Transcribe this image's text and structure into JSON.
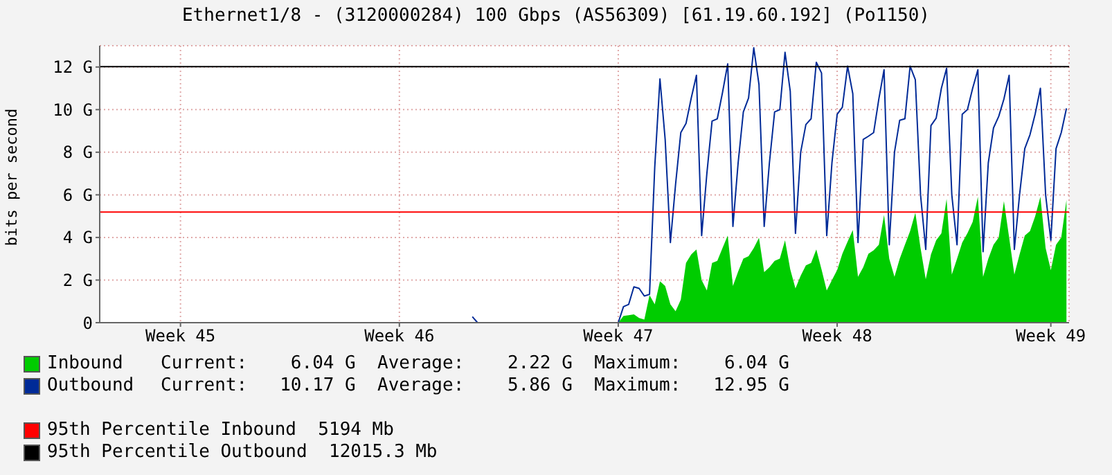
{
  "chart_data": {
    "type": "line",
    "title": "Ethernet1/8 - (3120000284) 100 Gbps (AS56309) [61.19.60.192] (Po1150)",
    "ylabel": "bits per second",
    "categories": [
      null,
      null,
      null,
      null,
      null,
      null,
      null,
      null,
      null,
      null,
      null,
      null,
      null,
      null,
      null,
      "Week 45",
      null,
      null,
      null,
      null,
      null,
      null,
      null,
      null,
      null,
      null,
      null,
      null,
      null,
      null,
      null,
      null,
      null,
      null,
      null,
      null,
      null,
      null,
      null,
      null,
      null,
      null,
      null,
      null,
      null,
      null,
      null,
      null,
      null,
      null,
      null,
      null,
      null,
      null,
      null,
      null,
      null,
      "Week 46",
      null,
      null,
      null,
      null,
      null,
      null,
      null,
      null,
      null,
      null,
      null,
      null,
      null,
      null,
      null,
      null,
      null,
      null,
      null,
      null,
      null,
      null,
      null,
      null,
      null,
      null,
      null,
      null,
      null,
      null,
      null,
      null,
      null,
      null,
      null,
      null,
      null,
      null,
      null,
      null,
      null,
      "Week 47",
      null,
      null,
      null,
      null,
      null,
      null,
      null,
      null,
      null,
      null,
      null,
      null,
      null,
      null,
      null,
      null,
      null,
      null,
      null,
      null,
      null,
      null,
      null,
      null,
      null,
      null,
      null,
      null,
      null,
      null,
      null,
      null,
      null,
      null,
      null,
      null,
      null,
      null,
      null,
      null,
      null,
      "Week 48",
      null,
      null,
      null,
      null,
      null,
      null,
      null,
      null,
      null,
      null,
      null,
      null,
      null,
      null,
      null,
      null,
      null,
      null,
      null,
      null,
      null,
      null,
      null,
      null,
      null,
      null,
      null,
      null,
      null,
      null,
      null,
      null,
      null,
      null,
      null,
      null,
      null,
      null,
      null,
      null,
      "Week 49",
      null,
      null,
      null
    ],
    "ylim": [
      0,
      13
    ],
    "yticks": [
      0,
      {
        "value": 2,
        "label": "2 G"
      },
      {
        "value": 4,
        "label": "4 G"
      },
      {
        "value": 6,
        "label": "6 G"
      },
      {
        "value": 8,
        "label": "8 G"
      },
      {
        "value": 10,
        "label": "10 G"
      },
      {
        "value": 12,
        "label": "12 G"
      }
    ],
    "grid": true,
    "legend": "bottom",
    "series": [
      {
        "name": "Inbound",
        "type": "area",
        "color": "#00cc00",
        "values": [
          null,
          null,
          null,
          null,
          null,
          null,
          null,
          null,
          null,
          null,
          null,
          null,
          null,
          null,
          null,
          null,
          null,
          null,
          null,
          null,
          null,
          null,
          null,
          null,
          null,
          null,
          null,
          null,
          null,
          null,
          null,
          null,
          null,
          null,
          null,
          null,
          null,
          null,
          null,
          null,
          null,
          null,
          null,
          null,
          null,
          null,
          null,
          null,
          null,
          null,
          null,
          null,
          null,
          null,
          null,
          null,
          null,
          null,
          null,
          null,
          null,
          null,
          null,
          null,
          null,
          null,
          null,
          null,
          null,
          null,
          null,
          null,
          null,
          null,
          null,
          null,
          null,
          null,
          null,
          null,
          null,
          null,
          null,
          null,
          null,
          null,
          null,
          null,
          null,
          null,
          null,
          null,
          null,
          null,
          null,
          null,
          null,
          null,
          null,
          0,
          0.32,
          0.35,
          0.39,
          0.22,
          0.15,
          1.29,
          0.86,
          1.94,
          1.72,
          0.86,
          0.54,
          1.08,
          2.8,
          3.2,
          3.44,
          2.0,
          1.51,
          2.8,
          2.9,
          3.5,
          4.09,
          1.72,
          2.4,
          3.01,
          3.12,
          3.5,
          3.98,
          2.37,
          2.6,
          2.9,
          3.01,
          3.87,
          2.5,
          1.61,
          2.2,
          2.69,
          2.8,
          3.44,
          2.5,
          1.51,
          2.0,
          2.47,
          3.23,
          3.8,
          4.35,
          2.15,
          2.6,
          3.23,
          3.4,
          3.66,
          5.05,
          3.0,
          2.15,
          3.0,
          3.66,
          4.3,
          5.16,
          3.5,
          2.04,
          3.2,
          3.87,
          4.19,
          5.81,
          2.26,
          3.0,
          3.76,
          4.2,
          4.73,
          5.91,
          2.15,
          3.0,
          3.66,
          4.0,
          5.7,
          4.0,
          2.26,
          3.2,
          4.09,
          4.3,
          5.0,
          5.91,
          3.5,
          2.47,
          3.66,
          4.0,
          5.76
        ]
      },
      {
        "name": "Outbound",
        "color": "#002a97",
        "values": [
          null,
          null,
          null,
          null,
          null,
          null,
          null,
          null,
          null,
          null,
          null,
          null,
          null,
          null,
          null,
          null,
          null,
          null,
          null,
          null,
          null,
          null,
          null,
          null,
          null,
          null,
          null,
          null,
          null,
          null,
          null,
          null,
          null,
          null,
          null,
          null,
          null,
          null,
          null,
          null,
          null,
          null,
          null,
          null,
          null,
          null,
          null,
          null,
          null,
          null,
          null,
          null,
          null,
          null,
          null,
          null,
          null,
          null,
          null,
          null,
          null,
          null,
          null,
          null,
          null,
          null,
          null,
          null,
          null,
          null,
          null,
          0.28,
          0,
          0,
          null,
          null,
          null,
          null,
          null,
          null,
          null,
          null,
          null,
          null,
          null,
          null,
          null,
          null,
          null,
          null,
          null,
          null,
          null,
          null,
          null,
          null,
          null,
          null,
          0,
          0,
          0.75,
          0.86,
          1.68,
          1.61,
          1.25,
          1.33,
          7.3,
          11.44,
          8.6,
          3.76,
          6.5,
          8.92,
          9.35,
          10.54,
          11.61,
          4.09,
          7.0,
          9.46,
          9.57,
          10.8,
          12.15,
          4.52,
          7.5,
          9.89,
          10.54,
          12.9,
          11.18,
          4.52,
          7.5,
          9.89,
          10.0,
          12.69,
          10.86,
          4.19,
          8.0,
          9.3,
          9.57,
          12.22,
          11.72,
          4.09,
          7.5,
          9.78,
          10.11,
          12.04,
          10.75,
          3.76,
          8.6,
          8.75,
          8.92,
          10.5,
          11.87,
          3.66,
          8.0,
          9.5,
          9.57,
          12.04,
          11.4,
          6.0,
          3.44,
          9.25,
          9.6,
          11.0,
          11.94,
          6.0,
          3.66,
          9.78,
          10.0,
          11.0,
          11.87,
          3.33,
          7.5,
          9.14,
          9.68,
          10.5,
          11.61,
          3.44,
          6.0,
          8.17,
          8.82,
          9.8,
          11.0,
          6.0,
          3.87,
          8.17,
          8.92,
          10.06
        ]
      }
    ],
    "ref_lines": [
      {
        "axis": "y",
        "value": 5.194,
        "label": "95th Percentile Inbound  5194 Mb",
        "color": "#ff0000"
      },
      {
        "axis": "y",
        "value": 12.0153,
        "label": "95th Percentile Outbound  12015.3 Mb",
        "color": "#000000"
      }
    ],
    "annotations": [
      "Current:    6.04 G  Average:    2.22 G  Maximum:    6.04 G",
      "Current:   10.17 G  Average:    5.86 G  Maximum:   12.95 G"
    ]
  }
}
